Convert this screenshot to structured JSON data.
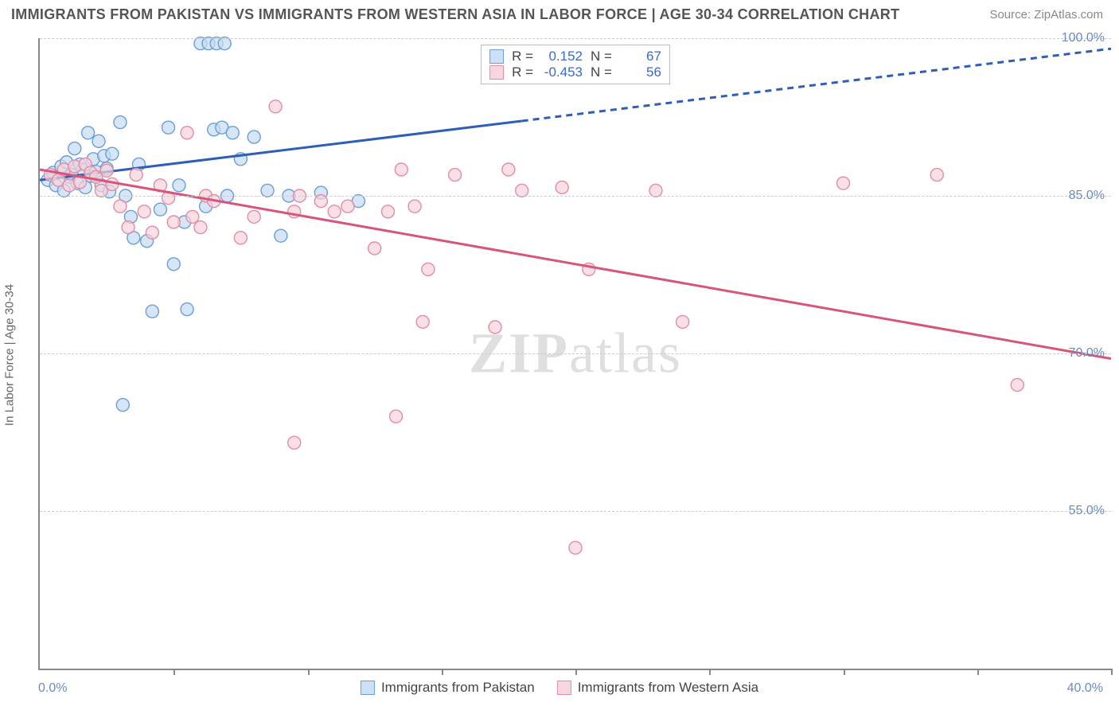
{
  "title": "IMMIGRANTS FROM PAKISTAN VS IMMIGRANTS FROM WESTERN ASIA IN LABOR FORCE | AGE 30-34 CORRELATION CHART",
  "source": "Source: ZipAtlas.com",
  "y_axis_title": "In Labor Force | Age 30-34",
  "watermark": "ZIPatlas",
  "chart": {
    "type": "scatter",
    "xlim": [
      0,
      40
    ],
    "ylim": [
      40,
      100
    ],
    "x_ticks": [
      0,
      5,
      10,
      15,
      20,
      25,
      30,
      35,
      40
    ],
    "y_grid": [
      55,
      70,
      85,
      100
    ],
    "y_labels": [
      "55.0%",
      "70.0%",
      "85.0%",
      "100.0%"
    ],
    "x_label_first": "0.0%",
    "x_label_last": "40.0%",
    "background_color": "#ffffff",
    "grid_color": "#cccccc",
    "axis_color": "#888888",
    "marker_radius": 8,
    "marker_stroke_width": 1.4,
    "series": [
      {
        "name": "Immigrants from Pakistan",
        "fill": "#c5dbf2",
        "stroke": "#6b9ed6",
        "trend_color": "#2e5fb5",
        "trend_start_y": 86.5,
        "trend_mid_x": 18.0,
        "trend_end_y": 99.0,
        "correlation_r": "0.152",
        "n": "67",
        "points": [
          [
            0.3,
            86.5
          ],
          [
            0.5,
            87.2
          ],
          [
            0.6,
            86.0
          ],
          [
            0.8,
            87.8
          ],
          [
            0.9,
            85.5
          ],
          [
            1.0,
            88.2
          ],
          [
            1.1,
            86.8
          ],
          [
            1.2,
            87.0
          ],
          [
            1.3,
            89.5
          ],
          [
            1.4,
            86.2
          ],
          [
            1.5,
            88.0
          ],
          [
            1.6,
            87.5
          ],
          [
            1.7,
            85.8
          ],
          [
            1.8,
            91.0
          ],
          [
            1.9,
            86.9
          ],
          [
            2.0,
            88.5
          ],
          [
            2.1,
            87.3
          ],
          [
            2.2,
            90.2
          ],
          [
            2.3,
            86.0
          ],
          [
            2.4,
            88.8
          ],
          [
            2.5,
            87.6
          ],
          [
            2.6,
            85.4
          ],
          [
            2.7,
            89.0
          ],
          [
            3.0,
            92.0
          ],
          [
            3.2,
            85.0
          ],
          [
            3.4,
            83.0
          ],
          [
            3.5,
            81.0
          ],
          [
            3.7,
            88.0
          ],
          [
            4.0,
            80.7
          ],
          [
            4.2,
            74.0
          ],
          [
            4.5,
            83.7
          ],
          [
            4.8,
            91.5
          ],
          [
            5.0,
            78.5
          ],
          [
            5.2,
            86.0
          ],
          [
            5.4,
            82.5
          ],
          [
            5.5,
            74.2
          ],
          [
            6.0,
            99.5
          ],
          [
            6.3,
            99.5
          ],
          [
            6.6,
            99.5
          ],
          [
            6.9,
            99.5
          ],
          [
            6.2,
            84.0
          ],
          [
            6.5,
            91.3
          ],
          [
            6.8,
            91.5
          ],
          [
            7.0,
            85.0
          ],
          [
            7.2,
            91.0
          ],
          [
            7.5,
            88.5
          ],
          [
            8.0,
            90.6
          ],
          [
            8.5,
            85.5
          ],
          [
            9.0,
            81.2
          ],
          [
            9.3,
            85.0
          ],
          [
            10.5,
            85.3
          ],
          [
            11.9,
            84.5
          ],
          [
            3.1,
            65.1
          ]
        ]
      },
      {
        "name": "Immigrants from Western Asia",
        "fill": "#f5d3db",
        "stroke": "#e48ca3",
        "trend_color": "#d8557a",
        "trend_start_y": 87.5,
        "trend_mid_x": 40.0,
        "trend_end_y": 69.5,
        "correlation_r": "-0.453",
        "n": "56",
        "points": [
          [
            0.4,
            87.0
          ],
          [
            0.7,
            86.5
          ],
          [
            0.9,
            87.5
          ],
          [
            1.1,
            86.0
          ],
          [
            1.3,
            87.8
          ],
          [
            1.5,
            86.3
          ],
          [
            1.7,
            88.0
          ],
          [
            1.9,
            87.2
          ],
          [
            2.1,
            86.8
          ],
          [
            2.3,
            85.5
          ],
          [
            2.5,
            87.4
          ],
          [
            2.7,
            86.1
          ],
          [
            3.0,
            84.0
          ],
          [
            3.3,
            82.0
          ],
          [
            3.6,
            87.0
          ],
          [
            3.9,
            83.5
          ],
          [
            4.2,
            81.5
          ],
          [
            4.5,
            86.0
          ],
          [
            4.8,
            84.8
          ],
          [
            5.0,
            82.5
          ],
          [
            5.5,
            91.0
          ],
          [
            5.7,
            83.0
          ],
          [
            6.0,
            82.0
          ],
          [
            6.2,
            85.0
          ],
          [
            6.5,
            84.5
          ],
          [
            7.5,
            81.0
          ],
          [
            8.0,
            83.0
          ],
          [
            8.8,
            93.5
          ],
          [
            9.5,
            83.5
          ],
          [
            9.7,
            85.0
          ],
          [
            10.5,
            84.5
          ],
          [
            11.0,
            83.5
          ],
          [
            11.5,
            84.0
          ],
          [
            12.5,
            80.0
          ],
          [
            13.0,
            83.5
          ],
          [
            13.5,
            87.5
          ],
          [
            14.0,
            84.0
          ],
          [
            14.5,
            78.0
          ],
          [
            15.5,
            87.0
          ],
          [
            17.5,
            87.5
          ],
          [
            18.0,
            85.5
          ],
          [
            19.5,
            85.8
          ],
          [
            20.5,
            78.0
          ],
          [
            17.0,
            72.5
          ],
          [
            23.0,
            85.5
          ],
          [
            24.0,
            73.0
          ],
          [
            30.0,
            86.2
          ],
          [
            20.0,
            51.5
          ],
          [
            33.5,
            87.0
          ],
          [
            36.5,
            67.0
          ],
          [
            14.3,
            73.0
          ],
          [
            13.3,
            64.0
          ],
          [
            9.5,
            61.5
          ]
        ]
      }
    ]
  },
  "legend_top": {
    "r_label": "R =",
    "n_label": "N ="
  }
}
